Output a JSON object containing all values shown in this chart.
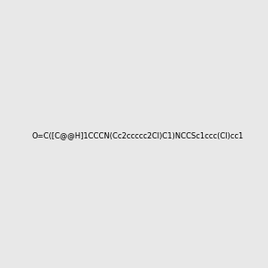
{
  "smiles": "O=C([C@@H]1CCCN(Cc2ccccc2Cl)C1)NCCSc1ccc(Cl)cc1",
  "image_size": 300,
  "background_color": "#e8e8e8",
  "bond_color": "#000000",
  "atom_colors": {
    "N": "#0000FF",
    "O": "#FF0000",
    "S": "#CCCC00",
    "Cl_top": "#00CC00",
    "Cl_bottom": "#00CC00"
  },
  "title": ""
}
